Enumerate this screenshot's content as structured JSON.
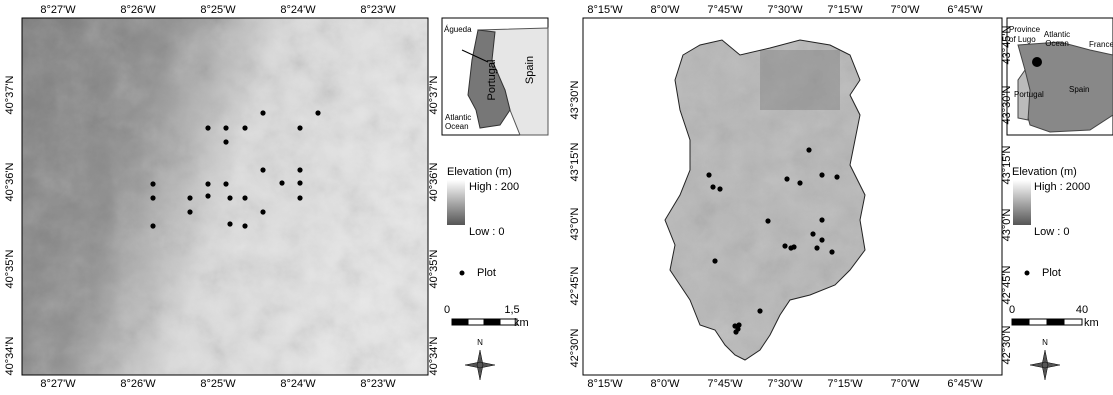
{
  "panels": [
    {
      "lon_labels": [
        "8°27'W",
        "8°26'W",
        "8°25'W",
        "8°24'W",
        "8°23'W"
      ],
      "lat_labels_left": [
        "40°37'N",
        "40°36'N",
        "40°35'N",
        "40°34'N"
      ],
      "lat_labels_right": [
        "40°37'N",
        "40°36'N",
        "40°35'N",
        "40°34'N"
      ],
      "inset": {
        "place": [
          "Águeda"
        ],
        "country": "Portugal",
        "neighbor": "Spain",
        "ocean": [
          "Atlantic",
          "Ocean"
        ]
      },
      "legend": {
        "title": "Elevation (m)",
        "high": "High : 200",
        "low": "Low : 0",
        "plot": "Plot",
        "scale_start": "0",
        "scale_end": "1,5",
        "scale_unit": "km",
        "north": "N"
      }
    },
    {
      "lon_labels": [
        "8°15'W",
        "8°0'W",
        "7°45'W",
        "7°30'W",
        "7°15'W",
        "7°0'W",
        "6°45'W"
      ],
      "lat_labels_left": [
        "43°30'N",
        "43°15'N",
        "43°0'N",
        "42°45'N",
        "42°30'N"
      ],
      "lat_labels_right": [
        "43°45'N",
        "43°30'N",
        "43°15'N",
        "43°0'N",
        "42°45'N",
        "42°30'N"
      ],
      "inset": {
        "place": [
          "Province",
          "of Lugo"
        ],
        "country": "Portugal",
        "neighbor": "Spain",
        "ocean": [
          "Atlantic",
          "Ocean"
        ],
        "other": "France"
      },
      "legend": {
        "title": "Elevation (m)",
        "high": "High : 2000",
        "low": "Low : 0",
        "plot": "Plot",
        "scale_start": "0",
        "scale_end": "40",
        "scale_unit": "km",
        "north": "N"
      }
    }
  ]
}
